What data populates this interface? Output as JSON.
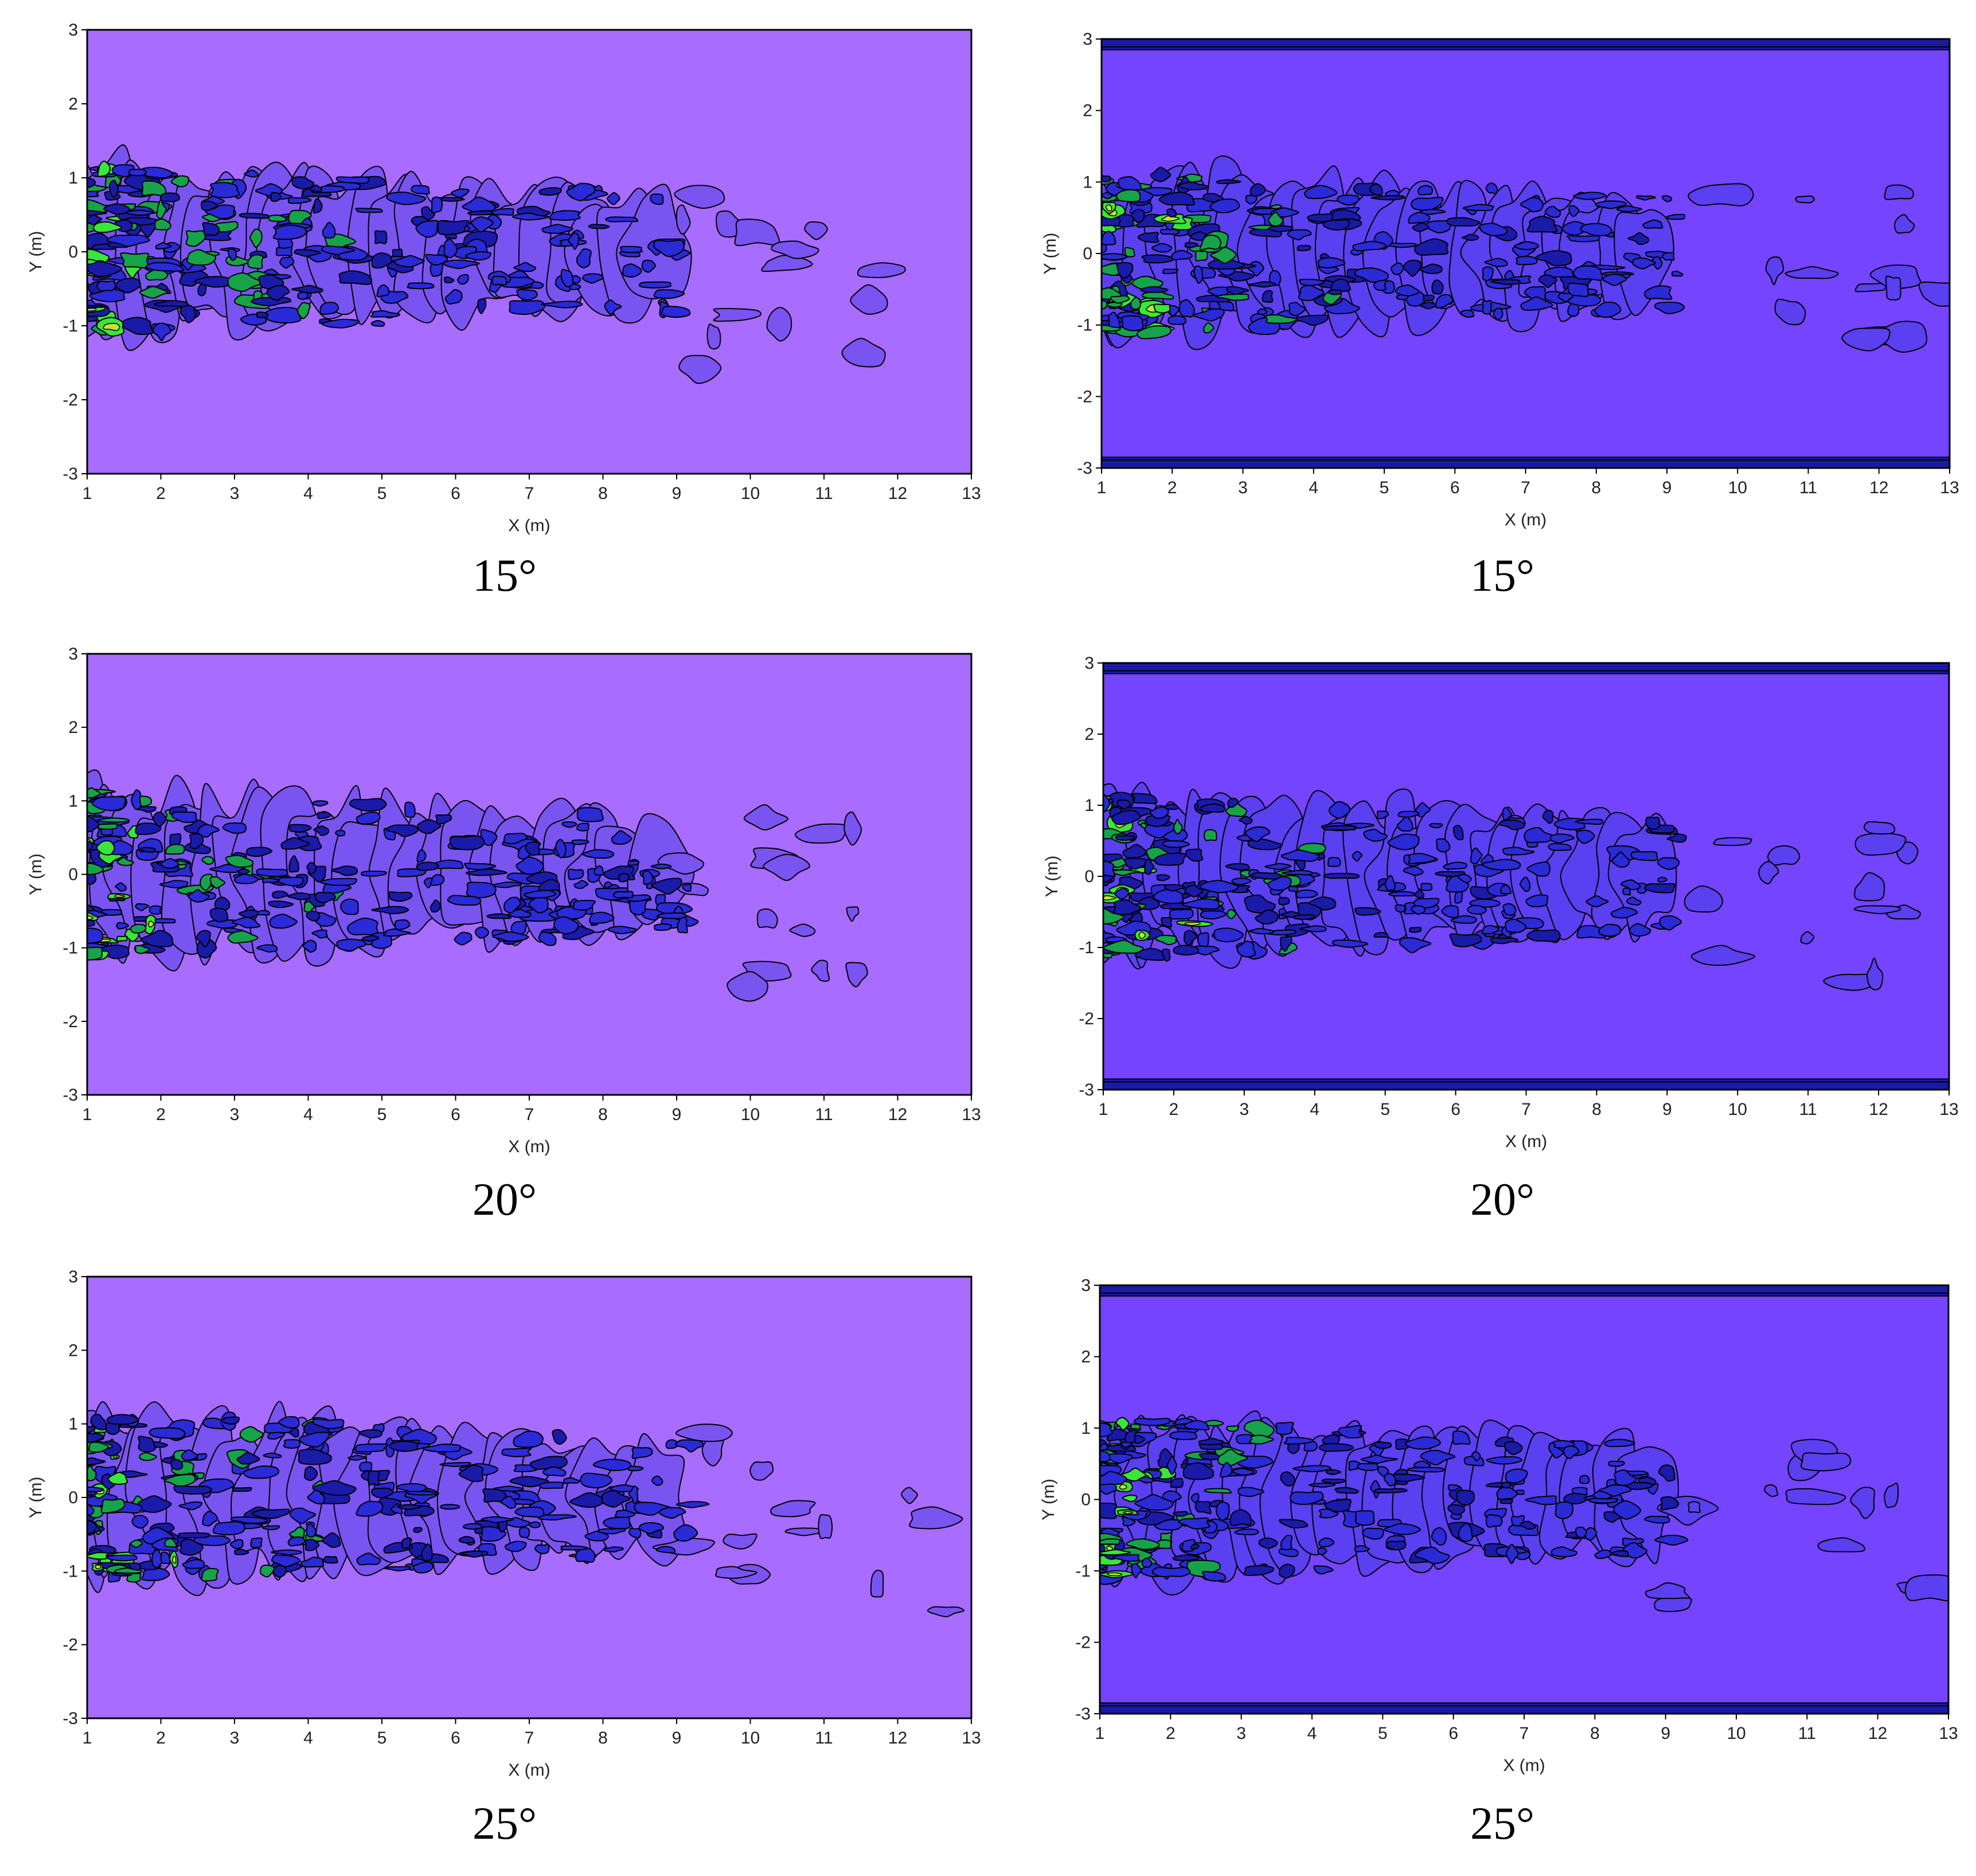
{
  "chart_data": [
    {
      "type": "heatmap",
      "caption": "15°",
      "xlabel": "X (m)",
      "ylabel": "Y (m)",
      "xlim": [
        1,
        13
      ],
      "ylim": [
        -3,
        3
      ],
      "xticks": [
        1,
        2,
        3,
        4,
        5,
        6,
        7,
        8,
        9,
        10,
        11,
        12,
        13
      ],
      "yticks": [
        -3,
        -2,
        -1,
        0,
        1,
        2,
        3
      ],
      "background_color": "#a86cff",
      "wake_extent_x": [
        1,
        13
      ],
      "wake_extent_y": [
        -1.4,
        1.35
      ],
      "colors": [
        "#a86cff",
        "#7a54f0",
        "#2a2ad6",
        "#1a1aa8",
        "#16a34a",
        "#39e639",
        "#c8e03a"
      ],
      "grid": false,
      "legend": "none"
    },
    {
      "type": "heatmap",
      "caption": "15°",
      "xlabel": "X (m)",
      "ylabel": "Y (m)",
      "xlim": [
        1,
        13
      ],
      "ylim": [
        -3,
        3
      ],
      "xticks": [
        1,
        2,
        3,
        4,
        5,
        6,
        7,
        8,
        9,
        10,
        11,
        12,
        13
      ],
      "yticks": [
        -3,
        -2,
        -1,
        0,
        1,
        2,
        3
      ],
      "background_color": "#7444ff",
      "wake_extent_x": [
        1,
        13
      ],
      "wake_extent_y": [
        -1.9,
        1.3
      ],
      "wall_band_y": [
        2.85,
        -2.85
      ],
      "colors": [
        "#7444ff",
        "#5a40f0",
        "#2a2ad6",
        "#1a1aa8",
        "#16a34a",
        "#39e639",
        "#c8e03a"
      ],
      "grid": false,
      "legend": "none"
    },
    {
      "type": "heatmap",
      "caption": "20°",
      "xlabel": "X (m)",
      "ylabel": "Y (m)",
      "xlim": [
        1,
        13
      ],
      "ylim": [
        -3,
        3
      ],
      "xticks": [
        1,
        2,
        3,
        4,
        5,
        6,
        7,
        8,
        9,
        10,
        11,
        12,
        13
      ],
      "yticks": [
        -3,
        -2,
        -1,
        0,
        1,
        2,
        3
      ],
      "background_color": "#a86cff",
      "wake_extent_x": [
        1,
        13
      ],
      "wake_extent_y": [
        -1.5,
        1.3
      ],
      "colors": [
        "#a86cff",
        "#7a54f0",
        "#2a2ad6",
        "#1a1aa8",
        "#16a34a",
        "#39e639",
        "#c8e03a"
      ],
      "grid": false,
      "legend": "none"
    },
    {
      "type": "heatmap",
      "caption": "20°",
      "xlabel": "X (m)",
      "ylabel": "Y (m)",
      "xlim": [
        1,
        13
      ],
      "ylim": [
        -3,
        3
      ],
      "xticks": [
        1,
        2,
        3,
        4,
        5,
        6,
        7,
        8,
        9,
        10,
        11,
        12,
        13
      ],
      "yticks": [
        -3,
        -2,
        -1,
        0,
        1,
        2,
        3
      ],
      "background_color": "#7444ff",
      "wake_extent_x": [
        1,
        13
      ],
      "wake_extent_y": [
        -1.9,
        1.3
      ],
      "wall_band_y": [
        2.85,
        -2.85
      ],
      "colors": [
        "#7444ff",
        "#5a40f0",
        "#2a2ad6",
        "#1a1aa8",
        "#16a34a",
        "#39e639",
        "#c8e03a"
      ],
      "grid": false,
      "legend": "none"
    },
    {
      "type": "heatmap",
      "caption": "25°",
      "xlabel": "X (m)",
      "ylabel": "Y (m)",
      "xlim": [
        1,
        13
      ],
      "ylim": [
        -3,
        3
      ],
      "xticks": [
        1,
        2,
        3,
        4,
        5,
        6,
        7,
        8,
        9,
        10,
        11,
        12,
        13
      ],
      "yticks": [
        -3,
        -2,
        -1,
        0,
        1,
        2,
        3
      ],
      "background_color": "#a86cff",
      "wake_extent_x": [
        1,
        13
      ],
      "wake_extent_y": [
        -1.5,
        1.3
      ],
      "colors": [
        "#a86cff",
        "#7a54f0",
        "#2a2ad6",
        "#1a1aa8",
        "#16a34a",
        "#39e639",
        "#c8e03a"
      ],
      "grid": false,
      "legend": "none"
    },
    {
      "type": "heatmap",
      "caption": "25°",
      "xlabel": "X (m)",
      "ylabel": "Y (m)",
      "xlim": [
        1,
        13
      ],
      "ylim": [
        -3,
        3
      ],
      "xticks": [
        1,
        2,
        3,
        4,
        5,
        6,
        7,
        8,
        9,
        10,
        11,
        12,
        13
      ],
      "yticks": [
        -3,
        -2,
        -1,
        0,
        1,
        2,
        3
      ],
      "background_color": "#7444ff",
      "wake_extent_x": [
        1,
        13
      ],
      "wake_extent_y": [
        -1.9,
        1.35
      ],
      "wall_band_y": [
        2.85,
        -2.85
      ],
      "colors": [
        "#7444ff",
        "#5a40f0",
        "#2a2ad6",
        "#1a1aa8",
        "#16a34a",
        "#39e639",
        "#c8e03a"
      ],
      "grid": false,
      "legend": "none"
    }
  ]
}
